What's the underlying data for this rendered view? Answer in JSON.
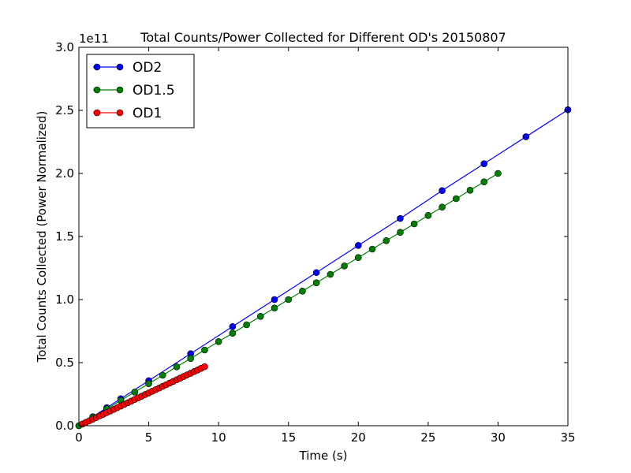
{
  "chart_data": {
    "type": "line",
    "title": "Total Counts/Power Collected for Different OD's 20150807",
    "xlabel": "Time (s)",
    "ylabel": "Total Counts Collected (Power Normalized)",
    "y_offset_label": "1e11",
    "y_scale_factor": 100000000000,
    "xlim": [
      0,
      35
    ],
    "ylim": [
      0,
      3.0
    ],
    "x_ticks": [
      0,
      5,
      10,
      15,
      20,
      25,
      30,
      35
    ],
    "x_tick_labels": [
      "0",
      "5",
      "10",
      "15",
      "20",
      "25",
      "30",
      "35"
    ],
    "y_ticks": [
      0.0,
      0.5,
      1.0,
      1.5,
      2.0,
      2.5,
      3.0
    ],
    "y_tick_labels": [
      "0.0",
      "0.5",
      "1.0",
      "1.5",
      "2.0",
      "2.5",
      "3.0"
    ],
    "grid": false,
    "legend_position": "top-left",
    "series": [
      {
        "name": "OD2",
        "color": "#0000ff",
        "x": [
          0,
          1,
          2,
          3,
          5,
          8,
          11,
          14,
          17,
          20,
          23,
          26,
          29,
          32,
          35
        ],
        "y": [
          0.0,
          0.071,
          0.143,
          0.214,
          0.357,
          0.571,
          0.786,
          1.0,
          1.214,
          1.429,
          1.643,
          1.864,
          2.077,
          2.291,
          2.505
        ]
      },
      {
        "name": "OD1.5",
        "color": "#008000",
        "x": [
          0,
          1,
          2,
          3,
          4,
          5,
          6,
          7,
          8,
          9,
          10,
          11,
          12,
          13,
          14,
          15,
          16,
          17,
          18,
          19,
          20,
          21,
          22,
          23,
          24,
          25,
          26,
          27,
          28,
          29,
          30
        ],
        "y": [
          0.0,
          0.067,
          0.133,
          0.2,
          0.267,
          0.333,
          0.4,
          0.467,
          0.533,
          0.6,
          0.667,
          0.733,
          0.8,
          0.867,
          0.933,
          1.0,
          1.067,
          1.133,
          1.2,
          1.267,
          1.333,
          1.4,
          1.467,
          1.533,
          1.6,
          1.667,
          1.733,
          1.8,
          1.867,
          1.933,
          2.0
        ]
      },
      {
        "name": "OD1",
        "color": "#ff0000",
        "x": [
          0.25,
          0.5,
          0.75,
          1.0,
          1.25,
          1.5,
          1.75,
          2.0,
          2.25,
          2.5,
          2.75,
          3.0,
          3.25,
          3.5,
          3.75,
          4.0,
          4.25,
          4.5,
          4.75,
          5.0,
          5.25,
          5.5,
          5.75,
          6.0,
          6.25,
          6.5,
          6.75,
          7.0,
          7.25,
          7.5,
          7.75,
          8.0,
          8.25,
          8.5,
          8.75,
          9.0
        ],
        "y": [
          0.013,
          0.026,
          0.039,
          0.052,
          0.065,
          0.078,
          0.091,
          0.104,
          0.117,
          0.13,
          0.143,
          0.156,
          0.169,
          0.182,
          0.195,
          0.208,
          0.221,
          0.234,
          0.247,
          0.26,
          0.273,
          0.286,
          0.299,
          0.312,
          0.325,
          0.338,
          0.351,
          0.364,
          0.377,
          0.39,
          0.403,
          0.416,
          0.429,
          0.442,
          0.455,
          0.468
        ]
      }
    ]
  }
}
